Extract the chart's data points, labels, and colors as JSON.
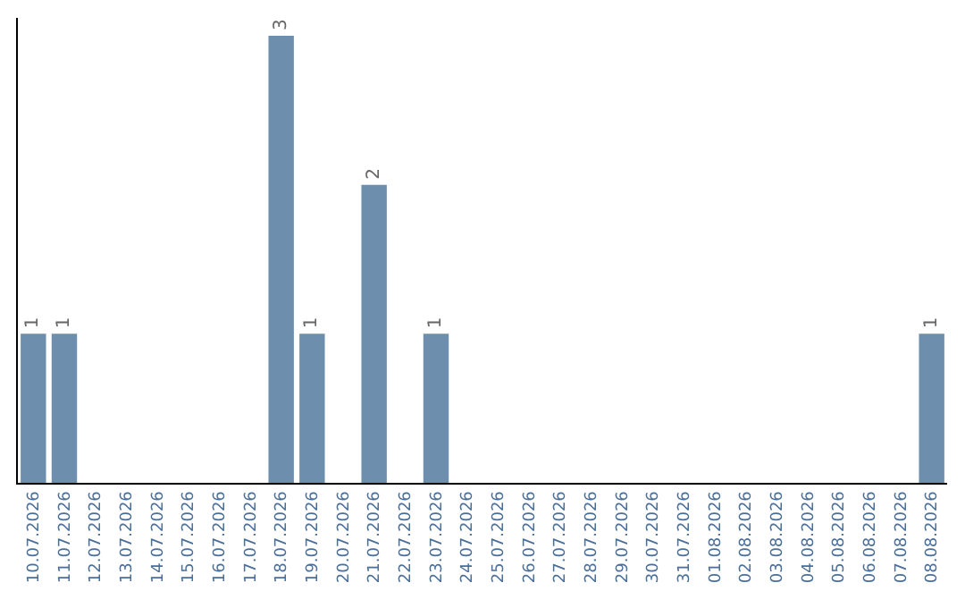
{
  "chart_data": {
    "type": "bar",
    "categories": [
      "10.07.2026",
      "11.07.2026",
      "12.07.2026",
      "13.07.2026",
      "14.07.2026",
      "15.07.2026",
      "16.07.2026",
      "17.07.2026",
      "18.07.2026",
      "19.07.2026",
      "20.07.2026",
      "21.07.2026",
      "22.07.2026",
      "23.07.2026",
      "24.07.2026",
      "25.07.2026",
      "26.07.2026",
      "27.07.2026",
      "28.07.2026",
      "29.07.2026",
      "30.07.2026",
      "31.07.2026",
      "01.08.2026",
      "02.08.2026",
      "03.08.2026",
      "04.08.2026",
      "05.08.2026",
      "06.08.2026",
      "07.08.2026",
      "08.08.2026"
    ],
    "values": [
      1,
      1,
      0,
      0,
      0,
      0,
      0,
      0,
      3,
      1,
      0,
      2,
      0,
      1,
      0,
      0,
      0,
      0,
      0,
      0,
      0,
      0,
      0,
      0,
      0,
      0,
      0,
      0,
      0,
      1
    ],
    "value_labels": [
      "1",
      "1",
      null,
      null,
      null,
      null,
      null,
      null,
      "3",
      "1",
      null,
      "2",
      null,
      "1",
      null,
      null,
      null,
      null,
      null,
      null,
      null,
      null,
      null,
      null,
      null,
      null,
      null,
      null,
      null,
      "1"
    ],
    "color": "#6d8fad",
    "tick_labels": "x"
  }
}
